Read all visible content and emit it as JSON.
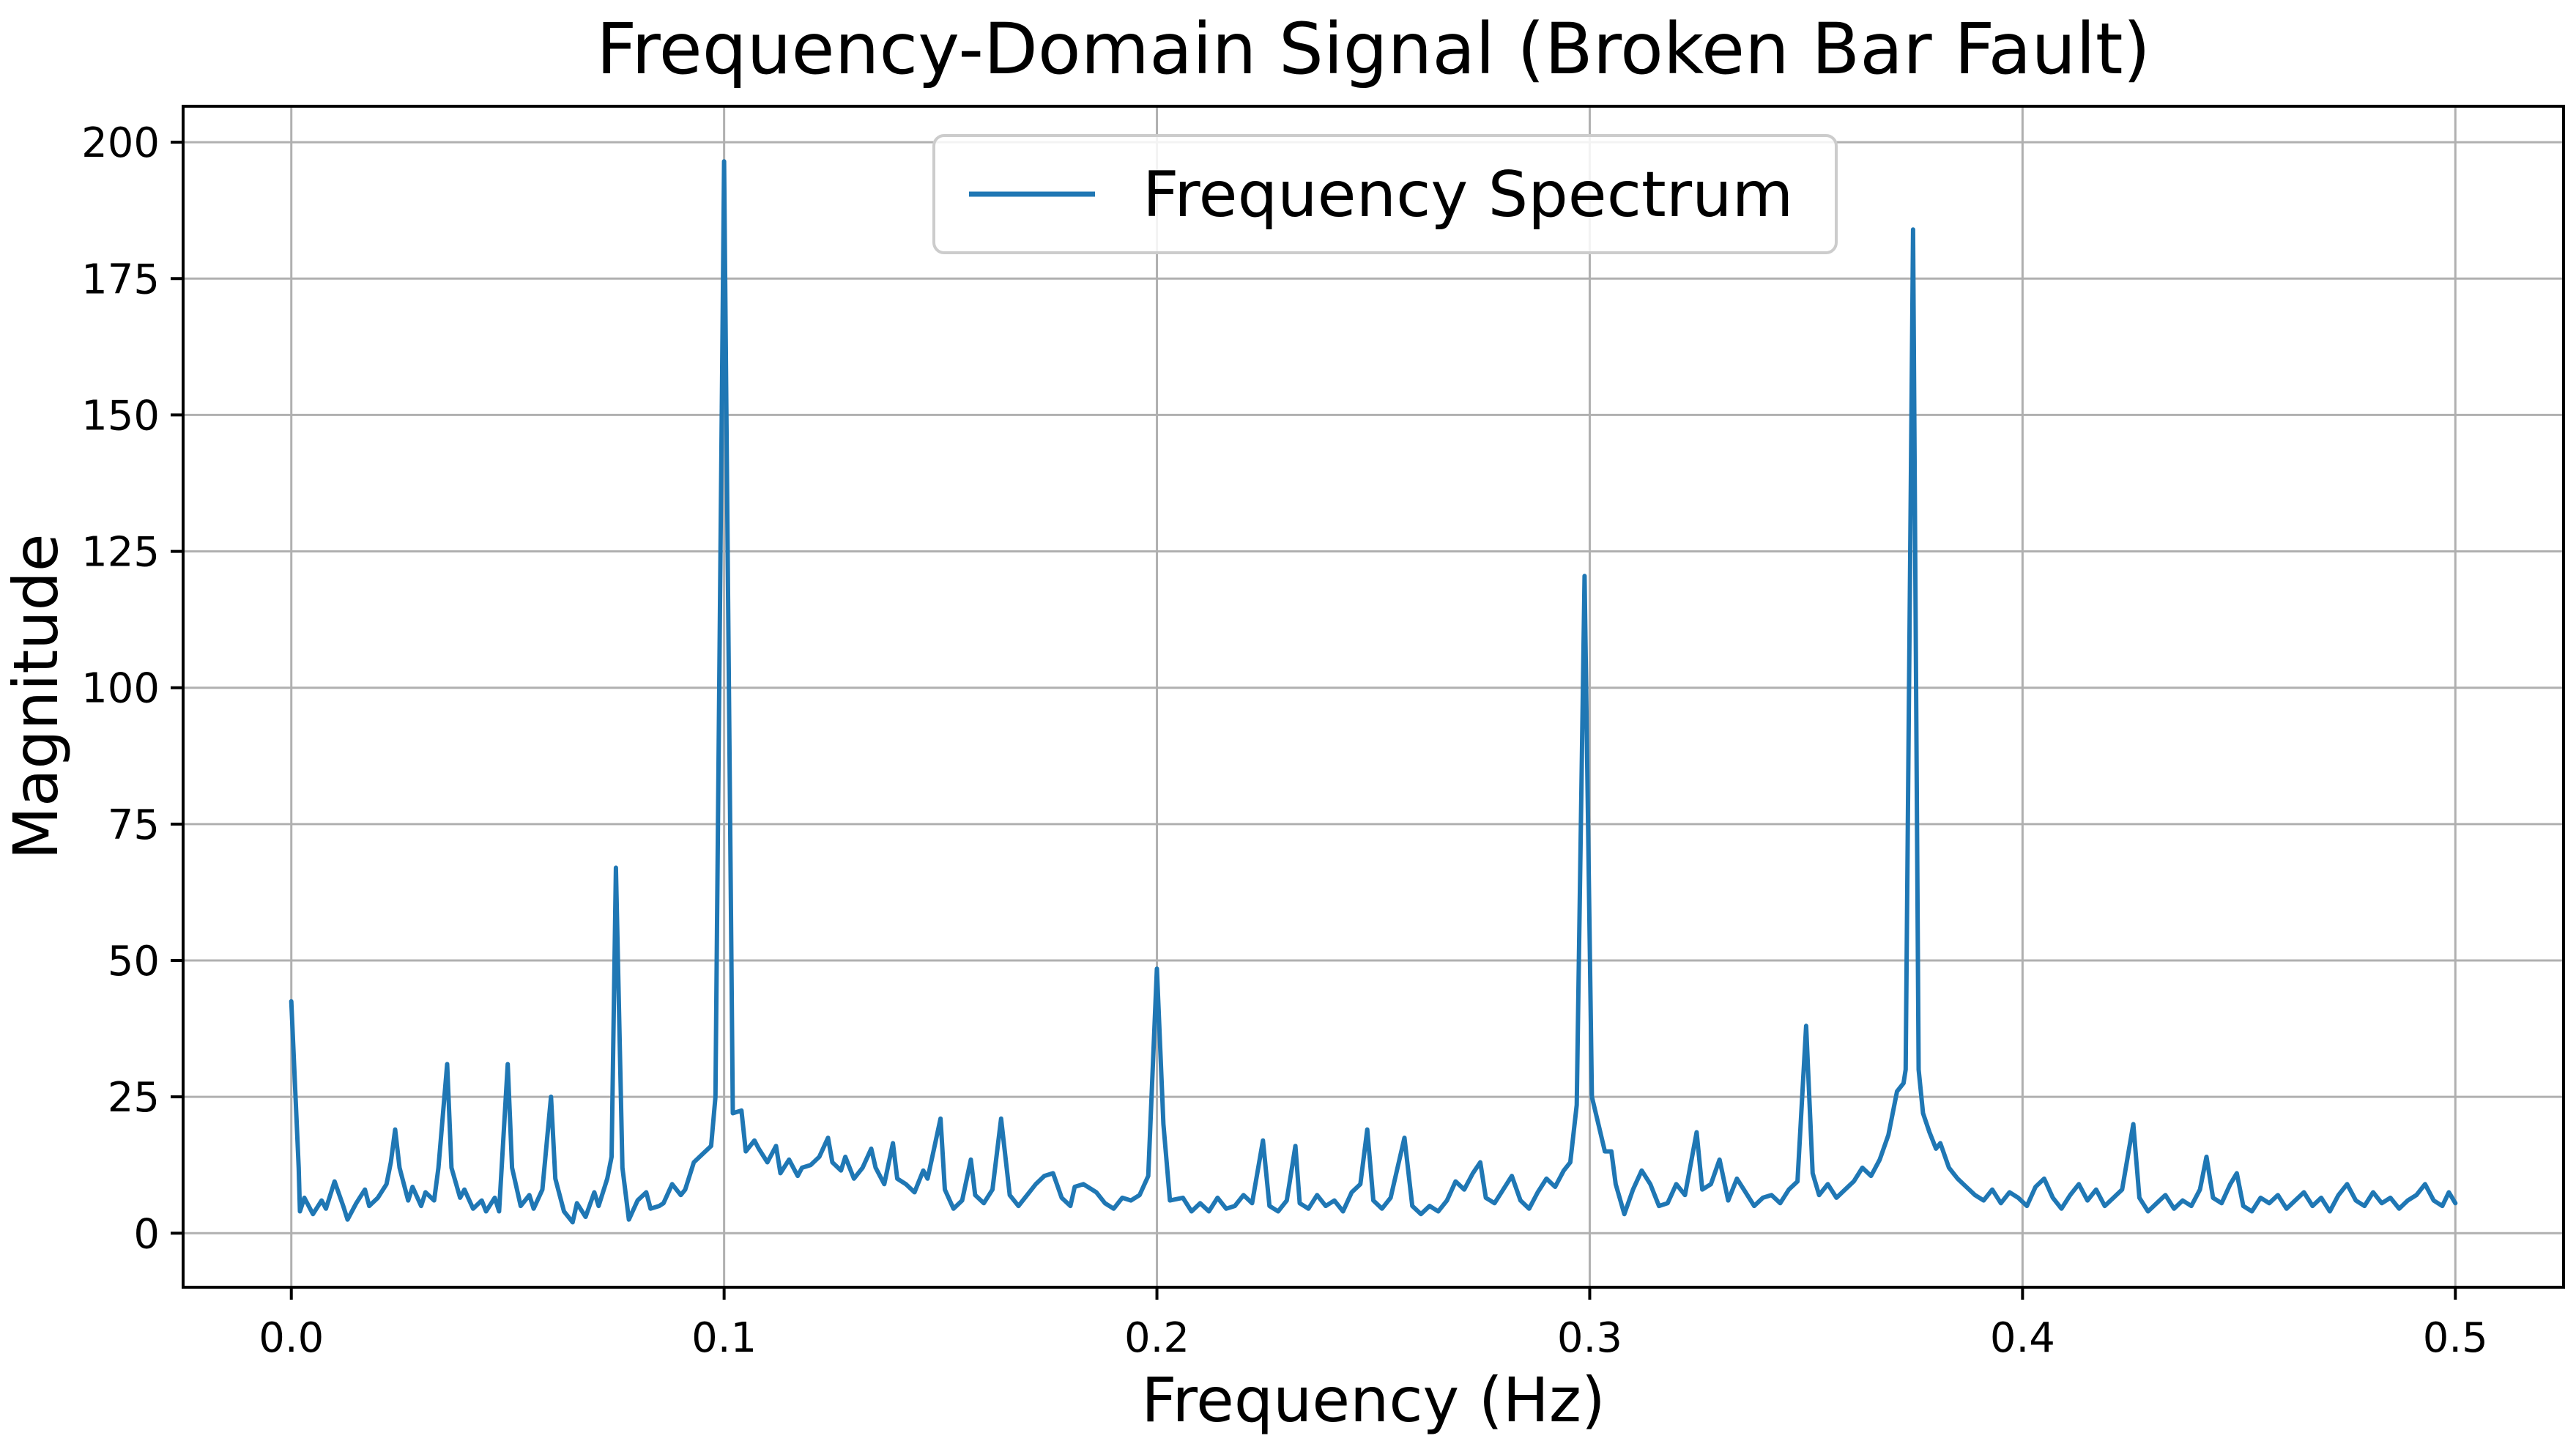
{
  "chart_data": {
    "type": "line",
    "title": "Frequency-Domain Signal (Broken Bar Fault)",
    "xlabel": "Frequency (Hz)",
    "ylabel": "Magnitude",
    "xlim": [
      -0.025,
      0.525
    ],
    "ylim": [
      -9.9,
      206.6
    ],
    "x_ticks": [
      0.0,
      0.1,
      0.2,
      0.3,
      0.4,
      0.5
    ],
    "x_tick_labels": [
      "0.0",
      "0.1",
      "0.2",
      "0.3",
      "0.4",
      "0.5"
    ],
    "y_ticks": [
      0,
      25,
      50,
      75,
      100,
      125,
      150,
      175,
      200
    ],
    "y_tick_labels": [
      "0",
      "25",
      "50",
      "75",
      "100",
      "125",
      "150",
      "175",
      "200"
    ],
    "grid": true,
    "grid_color": "#b0b0b0",
    "background_color": "#ffffff",
    "line_color": "#1f77b4",
    "legend": {
      "position": "upper center",
      "entries": [
        {
          "label": "Frequency Spectrum",
          "color": "#1f77b4"
        }
      ]
    },
    "notable_peaks": [
      {
        "freq": 0.0,
        "magnitude": 42.5
      },
      {
        "freq": 0.024,
        "magnitude": 19
      },
      {
        "freq": 0.036,
        "magnitude": 31
      },
      {
        "freq": 0.05,
        "magnitude": 31
      },
      {
        "freq": 0.06,
        "magnitude": 25
      },
      {
        "freq": 0.075,
        "magnitude": 67
      },
      {
        "freq": 0.1,
        "magnitude": 196.5
      },
      {
        "freq": 0.15,
        "magnitude": 21
      },
      {
        "freq": 0.165,
        "magnitude": 21
      },
      {
        "freq": 0.2,
        "magnitude": 48.5
      },
      {
        "freq": 0.249,
        "magnitude": 19
      },
      {
        "freq": 0.3,
        "magnitude": 120.5
      },
      {
        "freq": 0.325,
        "magnitude": 18.5
      },
      {
        "freq": 0.35,
        "magnitude": 38
      },
      {
        "freq": 0.375,
        "magnitude": 184
      },
      {
        "freq": 0.426,
        "magnitude": 20
      }
    ],
    "series": [
      {
        "name": "Frequency Spectrum",
        "points": [
          [
            0.0,
            42.5
          ],
          [
            0.0017,
            12.0
          ],
          [
            0.002,
            4.0
          ],
          [
            0.003,
            6.5
          ],
          [
            0.005,
            3.5
          ],
          [
            0.007,
            6.0
          ],
          [
            0.008,
            4.5
          ],
          [
            0.01,
            9.5
          ],
          [
            0.012,
            5.0
          ],
          [
            0.013,
            2.5
          ],
          [
            0.015,
            5.5
          ],
          [
            0.017,
            8.0
          ],
          [
            0.018,
            5.0
          ],
          [
            0.02,
            6.5
          ],
          [
            0.022,
            9.0
          ],
          [
            0.023,
            13.0
          ],
          [
            0.024,
            19.0
          ],
          [
            0.025,
            12.0
          ],
          [
            0.027,
            6.0
          ],
          [
            0.028,
            8.5
          ],
          [
            0.03,
            5.0
          ],
          [
            0.031,
            7.5
          ],
          [
            0.033,
            6.0
          ],
          [
            0.034,
            12.0
          ],
          [
            0.036,
            31.0
          ],
          [
            0.037,
            12.0
          ],
          [
            0.039,
            6.5
          ],
          [
            0.04,
            8.0
          ],
          [
            0.042,
            4.5
          ],
          [
            0.044,
            6.0
          ],
          [
            0.045,
            4.0
          ],
          [
            0.047,
            6.5
          ],
          [
            0.048,
            4.0
          ],
          [
            0.05,
            31.0
          ],
          [
            0.051,
            12.0
          ],
          [
            0.053,
            5.0
          ],
          [
            0.055,
            7.0
          ],
          [
            0.056,
            4.5
          ],
          [
            0.058,
            8.0
          ],
          [
            0.06,
            25.0
          ],
          [
            0.061,
            10.0
          ],
          [
            0.063,
            4.0
          ],
          [
            0.065,
            2.0
          ],
          [
            0.066,
            5.5
          ],
          [
            0.068,
            3.0
          ],
          [
            0.07,
            7.5
          ],
          [
            0.071,
            5.0
          ],
          [
            0.073,
            10.0
          ],
          [
            0.074,
            14.0
          ],
          [
            0.075,
            67.0
          ],
          [
            0.0765,
            12.0
          ],
          [
            0.078,
            2.5
          ],
          [
            0.08,
            6.0
          ],
          [
            0.082,
            7.5
          ],
          [
            0.083,
            4.5
          ],
          [
            0.085,
            5.0
          ],
          [
            0.086,
            5.5
          ],
          [
            0.088,
            9.0
          ],
          [
            0.09,
            7.0
          ],
          [
            0.091,
            8.0
          ],
          [
            0.093,
            13.0
          ],
          [
            0.095,
            14.5
          ],
          [
            0.097,
            16.0
          ],
          [
            0.098,
            25.0
          ],
          [
            0.1,
            196.5
          ],
          [
            0.102,
            22.0
          ],
          [
            0.104,
            22.5
          ],
          [
            0.105,
            15.0
          ],
          [
            0.107,
            17.0
          ],
          [
            0.108,
            15.5
          ],
          [
            0.11,
            13.0
          ],
          [
            0.112,
            16.0
          ],
          [
            0.113,
            11.0
          ],
          [
            0.115,
            13.5
          ],
          [
            0.117,
            10.5
          ],
          [
            0.118,
            12.0
          ],
          [
            0.12,
            12.5
          ],
          [
            0.122,
            14.0
          ],
          [
            0.124,
            17.5
          ],
          [
            0.125,
            13.0
          ],
          [
            0.127,
            11.5
          ],
          [
            0.128,
            14.0
          ],
          [
            0.13,
            10.0
          ],
          [
            0.132,
            12.0
          ],
          [
            0.134,
            15.5
          ],
          [
            0.135,
            12.0
          ],
          [
            0.137,
            9.0
          ],
          [
            0.139,
            16.5
          ],
          [
            0.14,
            10.0
          ],
          [
            0.142,
            9.0
          ],
          [
            0.144,
            7.5
          ],
          [
            0.146,
            11.5
          ],
          [
            0.147,
            10.0
          ],
          [
            0.15,
            21.0
          ],
          [
            0.151,
            8.0
          ],
          [
            0.153,
            4.5
          ],
          [
            0.155,
            6.0
          ],
          [
            0.157,
            13.5
          ],
          [
            0.158,
            7.0
          ],
          [
            0.16,
            5.5
          ],
          [
            0.162,
            8.0
          ],
          [
            0.164,
            21.0
          ],
          [
            0.166,
            7.0
          ],
          [
            0.168,
            5.0
          ],
          [
            0.17,
            7.0
          ],
          [
            0.172,
            9.0
          ],
          [
            0.174,
            10.5
          ],
          [
            0.176,
            11.0
          ],
          [
            0.178,
            6.5
          ],
          [
            0.18,
            5.0
          ],
          [
            0.181,
            8.5
          ],
          [
            0.183,
            9.0
          ],
          [
            0.185,
            8.0
          ],
          [
            0.186,
            7.5
          ],
          [
            0.188,
            5.5
          ],
          [
            0.19,
            4.5
          ],
          [
            0.192,
            6.5
          ],
          [
            0.194,
            6.0
          ],
          [
            0.196,
            7.0
          ],
          [
            0.198,
            10.5
          ],
          [
            0.2,
            48.5
          ],
          [
            0.2015,
            20.0
          ],
          [
            0.203,
            6.0
          ],
          [
            0.206,
            6.5
          ],
          [
            0.208,
            4.0
          ],
          [
            0.21,
            5.5
          ],
          [
            0.212,
            4.0
          ],
          [
            0.214,
            6.5
          ],
          [
            0.216,
            4.5
          ],
          [
            0.218,
            5.0
          ],
          [
            0.22,
            7.0
          ],
          [
            0.222,
            5.5
          ],
          [
            0.2245,
            17.0
          ],
          [
            0.226,
            5.0
          ],
          [
            0.228,
            4.0
          ],
          [
            0.23,
            6.0
          ],
          [
            0.232,
            16.0
          ],
          [
            0.233,
            5.5
          ],
          [
            0.235,
            4.5
          ],
          [
            0.237,
            7.0
          ],
          [
            0.239,
            5.0
          ],
          [
            0.241,
            6.0
          ],
          [
            0.243,
            4.0
          ],
          [
            0.245,
            7.5
          ],
          [
            0.247,
            9.0
          ],
          [
            0.2486,
            19.0
          ],
          [
            0.25,
            6.0
          ],
          [
            0.252,
            4.5
          ],
          [
            0.254,
            6.5
          ],
          [
            0.2572,
            17.5
          ],
          [
            0.259,
            5.0
          ],
          [
            0.261,
            3.5
          ],
          [
            0.263,
            5.0
          ],
          [
            0.265,
            4.0
          ],
          [
            0.267,
            6.0
          ],
          [
            0.269,
            9.5
          ],
          [
            0.271,
            8.0
          ],
          [
            0.273,
            11.0
          ],
          [
            0.2747,
            13.0
          ],
          [
            0.276,
            6.5
          ],
          [
            0.278,
            5.5
          ],
          [
            0.28,
            8.0
          ],
          [
            0.282,
            10.5
          ],
          [
            0.284,
            6.0
          ],
          [
            0.286,
            4.5
          ],
          [
            0.288,
            7.5
          ],
          [
            0.29,
            10.0
          ],
          [
            0.292,
            8.5
          ],
          [
            0.294,
            11.5
          ],
          [
            0.2955,
            13.0
          ],
          [
            0.297,
            23.5
          ],
          [
            0.2988,
            120.5
          ],
          [
            0.3005,
            25.0
          ],
          [
            0.302,
            20.0
          ],
          [
            0.3035,
            15.0
          ],
          [
            0.305,
            15.0
          ],
          [
            0.306,
            9.0
          ],
          [
            0.308,
            3.5
          ],
          [
            0.31,
            8.0
          ],
          [
            0.312,
            11.5
          ],
          [
            0.314,
            9.0
          ],
          [
            0.316,
            5.0
          ],
          [
            0.318,
            5.5
          ],
          [
            0.32,
            9.0
          ],
          [
            0.322,
            7.0
          ],
          [
            0.3247,
            18.5
          ],
          [
            0.326,
            8.0
          ],
          [
            0.328,
            9.0
          ],
          [
            0.33,
            13.5
          ],
          [
            0.332,
            6.0
          ],
          [
            0.334,
            10.0
          ],
          [
            0.336,
            7.5
          ],
          [
            0.338,
            5.0
          ],
          [
            0.34,
            6.5
          ],
          [
            0.342,
            7.0
          ],
          [
            0.344,
            5.5
          ],
          [
            0.346,
            8.0
          ],
          [
            0.348,
            9.5
          ],
          [
            0.35,
            38.0
          ],
          [
            0.3515,
            11.0
          ],
          [
            0.353,
            7.0
          ],
          [
            0.355,
            9.0
          ],
          [
            0.357,
            6.5
          ],
          [
            0.359,
            8.0
          ],
          [
            0.361,
            9.5
          ],
          [
            0.363,
            12.0
          ],
          [
            0.365,
            10.5
          ],
          [
            0.367,
            13.5
          ],
          [
            0.369,
            18.0
          ],
          [
            0.371,
            26.0
          ],
          [
            0.3725,
            27.5
          ],
          [
            0.373,
            30.0
          ],
          [
            0.3747,
            184.0
          ],
          [
            0.376,
            30.0
          ],
          [
            0.377,
            22.0
          ],
          [
            0.3785,
            18.5
          ],
          [
            0.38,
            15.5
          ],
          [
            0.381,
            16.5
          ],
          [
            0.383,
            12.0
          ],
          [
            0.385,
            10.0
          ],
          [
            0.387,
            8.5
          ],
          [
            0.389,
            7.0
          ],
          [
            0.391,
            6.0
          ],
          [
            0.393,
            8.0
          ],
          [
            0.395,
            5.5
          ],
          [
            0.397,
            7.5
          ],
          [
            0.399,
            6.5
          ],
          [
            0.401,
            5.0
          ],
          [
            0.403,
            8.5
          ],
          [
            0.405,
            10.0
          ],
          [
            0.407,
            6.5
          ],
          [
            0.409,
            4.5
          ],
          [
            0.411,
            7.0
          ],
          [
            0.413,
            9.0
          ],
          [
            0.415,
            6.0
          ],
          [
            0.417,
            8.0
          ],
          [
            0.419,
            5.0
          ],
          [
            0.421,
            6.5
          ],
          [
            0.423,
            8.0
          ],
          [
            0.4256,
            20.0
          ],
          [
            0.427,
            6.5
          ],
          [
            0.429,
            4.0
          ],
          [
            0.431,
            5.5
          ],
          [
            0.433,
            7.0
          ],
          [
            0.435,
            4.5
          ],
          [
            0.437,
            6.0
          ],
          [
            0.439,
            5.0
          ],
          [
            0.441,
            8.0
          ],
          [
            0.4425,
            14.0
          ],
          [
            0.444,
            6.5
          ],
          [
            0.446,
            5.5
          ],
          [
            0.448,
            9.0
          ],
          [
            0.4495,
            11.0
          ],
          [
            0.451,
            5.0
          ],
          [
            0.453,
            4.0
          ],
          [
            0.455,
            6.5
          ],
          [
            0.457,
            5.5
          ],
          [
            0.459,
            7.0
          ],
          [
            0.461,
            4.5
          ],
          [
            0.463,
            6.0
          ],
          [
            0.465,
            7.5
          ],
          [
            0.467,
            5.0
          ],
          [
            0.469,
            6.5
          ],
          [
            0.471,
            4.0
          ],
          [
            0.473,
            7.0
          ],
          [
            0.475,
            9.0
          ],
          [
            0.477,
            6.0
          ],
          [
            0.479,
            5.0
          ],
          [
            0.481,
            7.5
          ],
          [
            0.483,
            5.5
          ],
          [
            0.485,
            6.5
          ],
          [
            0.487,
            4.5
          ],
          [
            0.489,
            6.0
          ],
          [
            0.491,
            7.0
          ],
          [
            0.493,
            9.0
          ],
          [
            0.495,
            6.0
          ],
          [
            0.497,
            5.0
          ],
          [
            0.4985,
            7.5
          ],
          [
            0.5,
            5.5
          ]
        ]
      }
    ]
  }
}
